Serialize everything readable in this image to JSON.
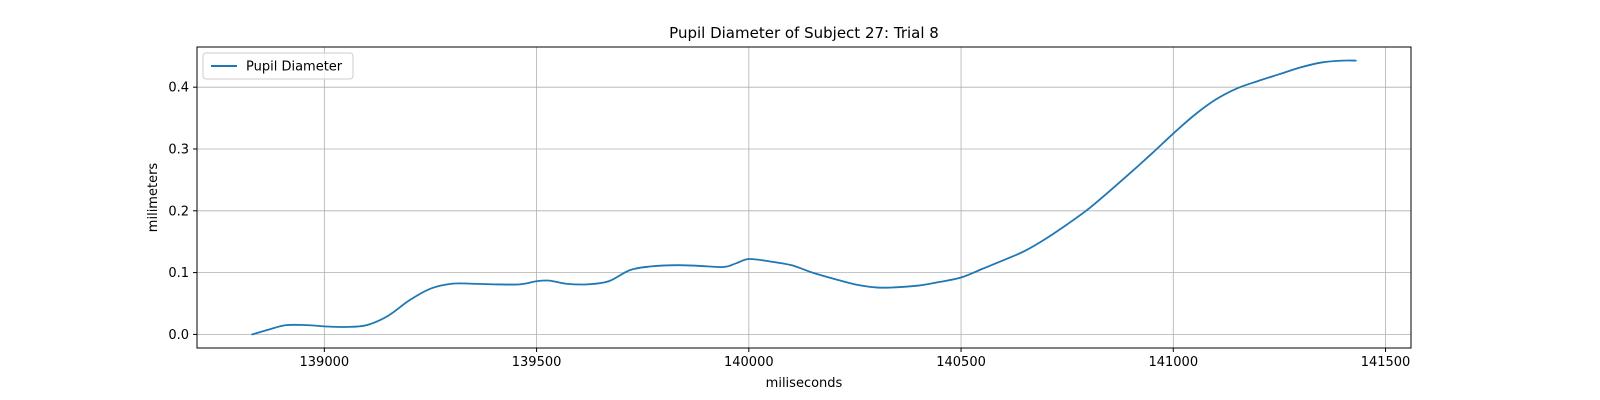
{
  "chart_data": {
    "type": "line",
    "title": "Pupil Diameter of Subject 27: Trial 8",
    "xlabel": "miliseconds",
    "ylabel": "milimeters",
    "xlim": [
      138700,
      141560
    ],
    "ylim": [
      -0.022,
      0.465
    ],
    "xticks": [
      139000,
      139500,
      140000,
      140500,
      141000,
      141500
    ],
    "yticks": [
      0.0,
      0.1,
      0.2,
      0.3,
      0.4
    ],
    "xtick_labels": [
      "139000",
      "139500",
      "140000",
      "140500",
      "141000",
      "141500"
    ],
    "ytick_labels": [
      "0.0",
      "0.1",
      "0.2",
      "0.3",
      "0.4"
    ],
    "grid": true,
    "legend": {
      "position": "top-left"
    },
    "series": [
      {
        "name": "Pupil Diameter",
        "color": "#1f77b4",
        "x": [
          138830,
          138870,
          138910,
          138960,
          139000,
          139050,
          139100,
          139150,
          139200,
          139250,
          139300,
          139350,
          139400,
          139460,
          139500,
          139530,
          139570,
          139620,
          139670,
          139720,
          139770,
          139830,
          139880,
          139940,
          139970,
          140000,
          140050,
          140100,
          140150,
          140200,
          140250,
          140300,
          140340,
          140400,
          140450,
          140500,
          140550,
          140600,
          140650,
          140700,
          140750,
          140800,
          140850,
          140900,
          140950,
          141000,
          141050,
          141100,
          141150,
          141200,
          141250,
          141300,
          141350,
          141400,
          141430
        ],
        "y": [
          0.0,
          0.008,
          0.015,
          0.015,
          0.013,
          0.012,
          0.015,
          0.03,
          0.055,
          0.074,
          0.082,
          0.082,
          0.081,
          0.081,
          0.086,
          0.087,
          0.082,
          0.081,
          0.086,
          0.104,
          0.11,
          0.112,
          0.111,
          0.109,
          0.115,
          0.122,
          0.118,
          0.112,
          0.1,
          0.09,
          0.081,
          0.076,
          0.076,
          0.079,
          0.085,
          0.092,
          0.106,
          0.12,
          0.135,
          0.155,
          0.178,
          0.203,
          0.232,
          0.262,
          0.293,
          0.325,
          0.355,
          0.38,
          0.398,
          0.41,
          0.421,
          0.432,
          0.44,
          0.443,
          0.443
        ]
      }
    ]
  }
}
